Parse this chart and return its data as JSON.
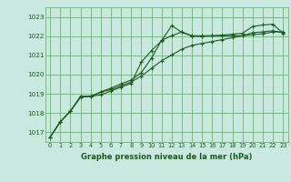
{
  "title": "Graphe pression niveau de la mer (hPa)",
  "bg_color": "#c8e8e0",
  "grid_color": "#66bb66",
  "line_color": "#1a5c1a",
  "xlim": [
    -0.5,
    23.5
  ],
  "ylim": [
    1016.5,
    1023.5
  ],
  "yticks": [
    1017,
    1018,
    1019,
    1020,
    1021,
    1022,
    1023
  ],
  "xticks": [
    0,
    1,
    2,
    3,
    4,
    5,
    6,
    7,
    8,
    9,
    10,
    11,
    12,
    13,
    14,
    15,
    16,
    17,
    18,
    19,
    20,
    21,
    22,
    23
  ],
  "series": [
    [
      1016.75,
      1017.55,
      1018.1,
      1018.82,
      1018.87,
      1018.95,
      1019.15,
      1019.35,
      1019.55,
      1020.65,
      1021.25,
      1021.75,
      1022.55,
      1022.2,
      1022.0,
      1021.98,
      1022.02,
      1022.05,
      1022.1,
      1022.15,
      1022.5,
      1022.58,
      1022.62,
      1022.15
    ],
    [
      1016.75,
      1017.55,
      1018.1,
      1018.87,
      1018.87,
      1019.1,
      1019.3,
      1019.52,
      1019.72,
      1020.1,
      1020.85,
      1021.78,
      1022.02,
      1022.22,
      1022.02,
      1022.02,
      1022.02,
      1022.02,
      1022.02,
      1022.02,
      1022.18,
      1022.22,
      1022.28,
      1022.18
    ],
    [
      1016.75,
      1017.55,
      1018.1,
      1018.87,
      1018.87,
      1019.1,
      1019.22,
      1019.42,
      1019.62,
      1019.92,
      1020.32,
      1020.72,
      1021.02,
      1021.32,
      1021.52,
      1021.62,
      1021.72,
      1021.82,
      1021.92,
      1022.02,
      1022.08,
      1022.12,
      1022.22,
      1022.22
    ]
  ]
}
